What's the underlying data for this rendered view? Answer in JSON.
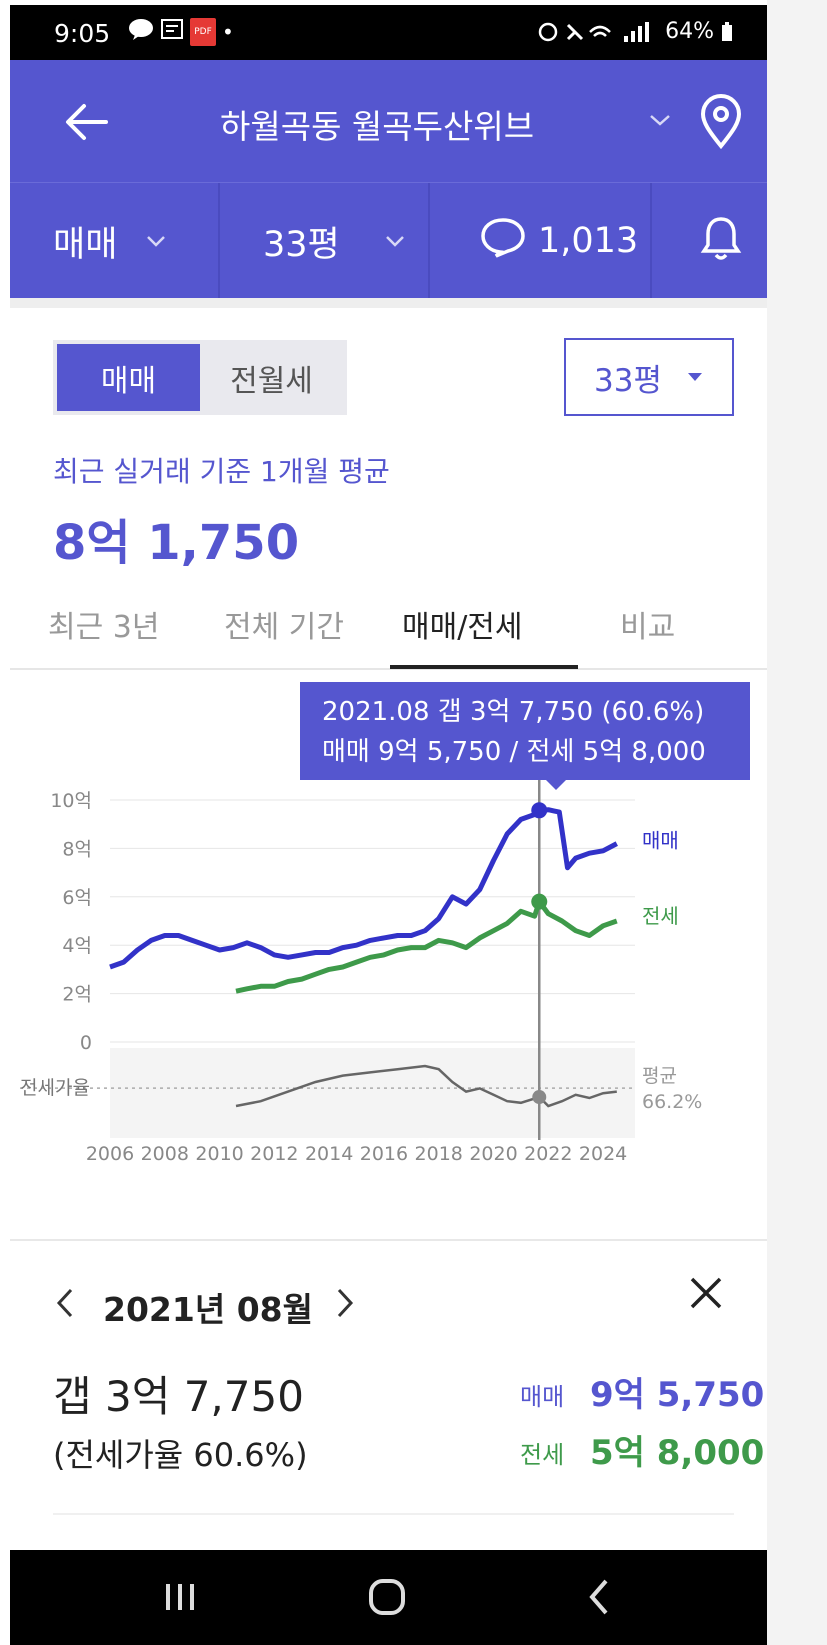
{
  "status": {
    "time": "9:05",
    "notif_icons": [
      "chat-bubble-icon",
      "app-icon",
      "pdf-icon"
    ],
    "dot": "•",
    "battery": "64%"
  },
  "header": {
    "title": "하월곡동 월곡두산위브",
    "deal_type": "매매",
    "size": "33평",
    "comment_count": "1,013"
  },
  "toggle": {
    "sale": "매매",
    "rent": "전월세",
    "size": "33평"
  },
  "summary": {
    "label": "최근 실거래 기준 1개월 평균",
    "value": "8억 1,750"
  },
  "tabs": [
    "최근 3년",
    "전체 기간",
    "매매/전세",
    "비교"
  ],
  "active_tab": 2,
  "tooltip": {
    "line1": "2021.08  갭 3억 7,750 (60.6%)",
    "line2": "매매 9억 5,750 / 전세 5억 8,000"
  },
  "chart_data": {
    "type": "line",
    "ylabel": "",
    "y_ticks": [
      "10억",
      "8억",
      "6억",
      "4억",
      "2억",
      "0"
    ],
    "ylim": [
      0,
      10
    ],
    "x_ticks": [
      "2006",
      "2008",
      "2010",
      "2012",
      "2014",
      "2016",
      "2018",
      "2020",
      "2022",
      "2024"
    ],
    "ratio_label": "전세가율",
    "ratio_avg_label": "평균",
    "ratio_avg_value": "66.2%",
    "series": [
      {
        "name": "매매",
        "color": "#3232c8",
        "x": [
          2006.0,
          2006.5,
          2007.0,
          2007.5,
          2008.0,
          2008.5,
          2009.0,
          2009.5,
          2010.0,
          2010.5,
          2011.0,
          2011.5,
          2012.0,
          2012.5,
          2013.0,
          2013.5,
          2014.0,
          2014.5,
          2015.0,
          2015.5,
          2016.0,
          2016.5,
          2017.0,
          2017.5,
          2018.0,
          2018.5,
          2019.0,
          2019.5,
          2020.0,
          2020.5,
          2021.0,
          2021.5,
          2021.67,
          2022.0,
          2022.2,
          2022.4,
          2022.7,
          2023.0,
          2023.5,
          2024.0,
          2024.5
        ],
        "values": [
          3.1,
          3.3,
          3.8,
          4.2,
          4.4,
          4.4,
          4.2,
          4.0,
          3.8,
          3.9,
          4.1,
          3.9,
          3.6,
          3.5,
          3.6,
          3.7,
          3.7,
          3.9,
          4.0,
          4.2,
          4.3,
          4.4,
          4.4,
          4.6,
          5.1,
          6.0,
          5.7,
          6.3,
          7.5,
          8.6,
          9.2,
          9.4,
          9.575,
          9.6,
          9.55,
          9.5,
          7.2,
          7.6,
          7.8,
          7.9,
          8.2
        ]
      },
      {
        "name": "전세",
        "color": "#3e9a4a",
        "x": [
          2010.6,
          2011.0,
          2011.5,
          2012.0,
          2012.5,
          2013.0,
          2013.5,
          2014.0,
          2014.5,
          2015.0,
          2015.5,
          2016.0,
          2016.5,
          2017.0,
          2017.5,
          2018.0,
          2018.5,
          2019.0,
          2019.5,
          2020.0,
          2020.5,
          2021.0,
          2021.5,
          2021.67,
          2022.0,
          2022.5,
          2023.0,
          2023.5,
          2024.0,
          2024.5
        ],
        "values": [
          2.1,
          2.2,
          2.3,
          2.3,
          2.5,
          2.6,
          2.8,
          3.0,
          3.1,
          3.3,
          3.5,
          3.6,
          3.8,
          3.9,
          3.9,
          4.2,
          4.1,
          3.9,
          4.3,
          4.6,
          4.9,
          5.4,
          5.2,
          5.8,
          5.3,
          5.0,
          4.6,
          4.4,
          4.8,
          5.0
        ]
      },
      {
        "name": "전세가율",
        "color": "#666666",
        "x": [
          2010.6,
          2011.5,
          2012.5,
          2013.5,
          2014.5,
          2015.5,
          2016.5,
          2017.5,
          2018.0,
          2018.5,
          2019.0,
          2019.5,
          2020.0,
          2020.5,
          2021.0,
          2021.67,
          2022.0,
          2022.5,
          2023.0,
          2023.5,
          2024.0,
          2024.5
        ],
        "values": [
          55,
          58,
          64,
          70,
          74,
          76,
          78,
          80,
          78,
          70,
          64,
          66,
          62,
          58,
          57,
          60.6,
          55,
          58,
          62,
          60,
          63,
          64
        ]
      }
    ],
    "highlight_x": 2021.67
  },
  "detail": {
    "month": "2021년 08월",
    "gap": "갭 3억 7,750",
    "ratio": "(전세가율 60.6%)",
    "sale_label": "매매",
    "sale_value": "9억 5,750",
    "rent_label": "전세",
    "rent_value": "5억 8,000"
  }
}
